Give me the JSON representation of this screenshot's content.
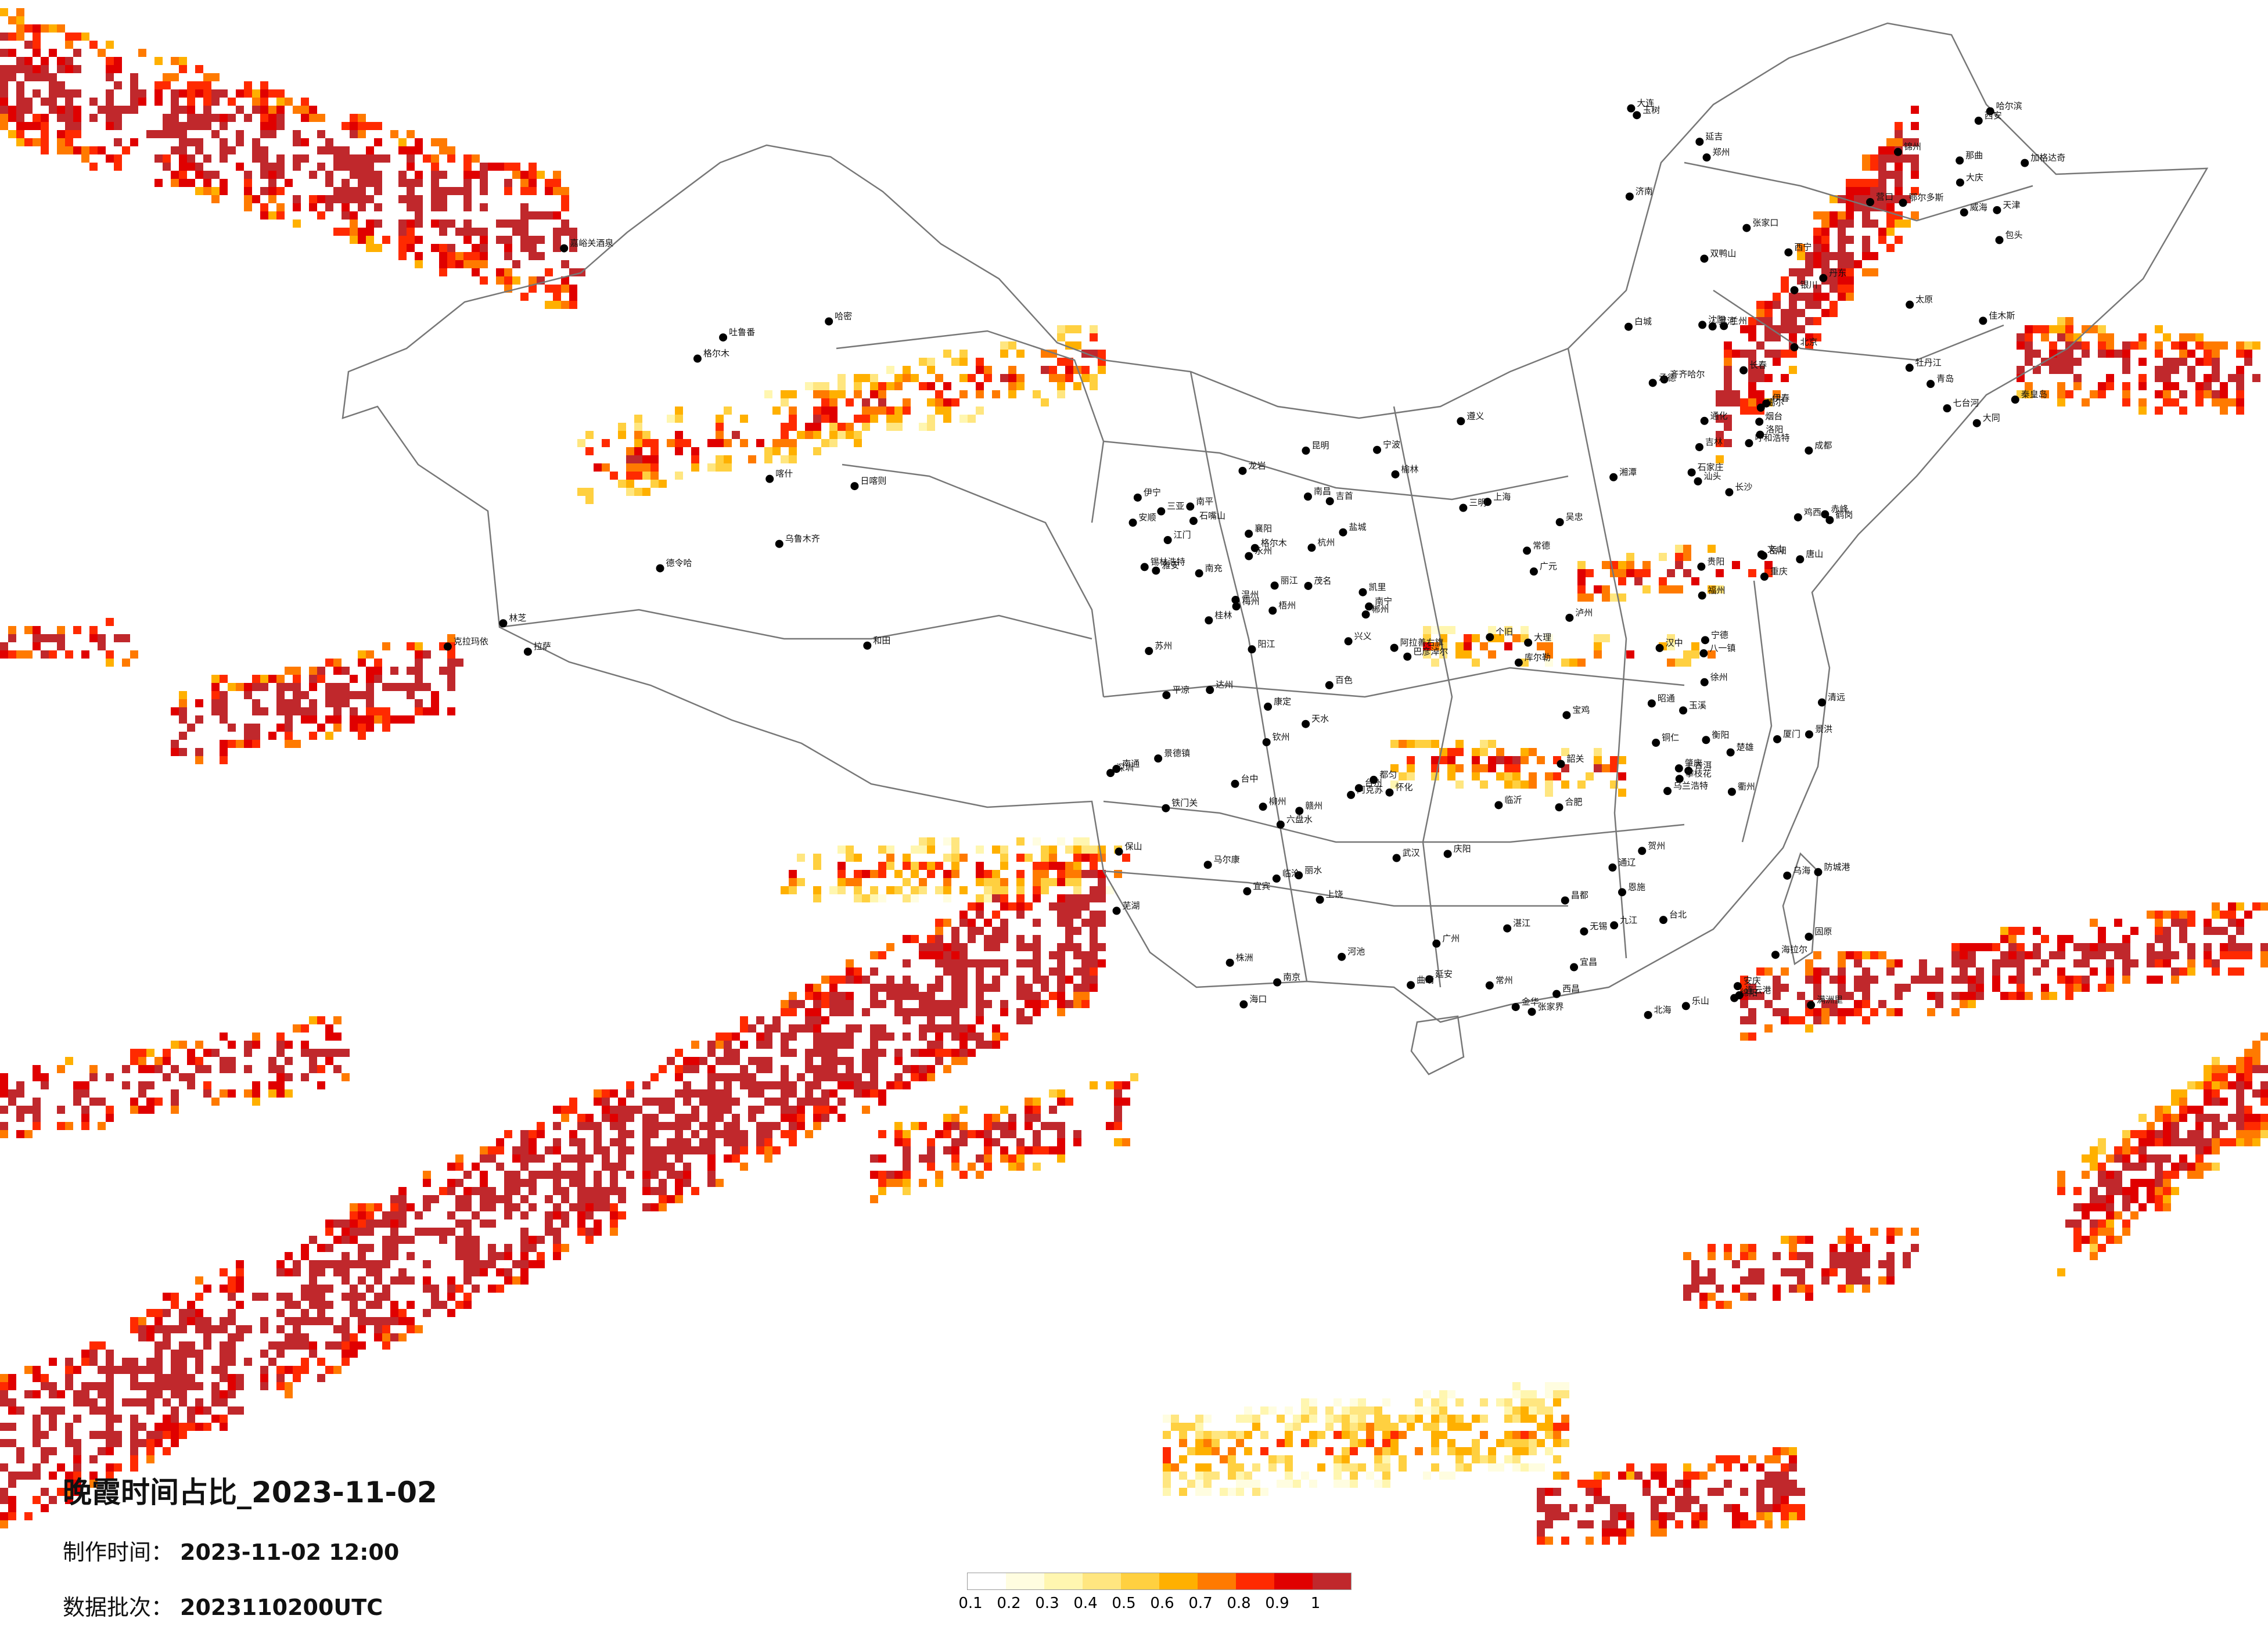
{
  "title": "晚霞时间占比_2023-11-02",
  "made_label": "制作时间：",
  "made_value": "2023-11-02 12:00",
  "batch_label": "数据批次：",
  "batch_value": "2023110200UTC",
  "legend": {
    "colors": [
      "#ffffff",
      "#fffde0",
      "#fff6b0",
      "#ffe680",
      "#ffd040",
      "#ffb000",
      "#ff7a00",
      "#ff2a00",
      "#e00000",
      "#c0282c"
    ],
    "ticks": [
      "0.1",
      "0.2",
      "0.3",
      "0.4",
      "0.5",
      "0.6",
      "0.7",
      "0.8",
      "0.9",
      "1"
    ]
  },
  "cities": [
    "克拉玛依",
    "乌鲁木齐",
    "吐鲁番",
    "喀什",
    "和田",
    "哈密",
    "嘉峪关酒泉",
    "德令哈",
    "格尔木",
    "拉萨",
    "日喀则",
    "林芝",
    "那曲",
    "噶尔",
    "玉树",
    "西宁",
    "兰州",
    "银川",
    "呼和浩特",
    "包头",
    "鄂尔多斯",
    "大同",
    "太原",
    "石家庄",
    "北京",
    "天津",
    "沈阳",
    "长春",
    "哈尔滨",
    "齐齐哈尔",
    "大庆",
    "加格达奇",
    "黑河",
    "伊春",
    "鹤岗",
    "佳木斯",
    "双鸭山",
    "七台河",
    "鸡西",
    "牡丹江",
    "吉林",
    "延吉",
    "通化",
    "白城",
    "丹东",
    "大连",
    "营口",
    "锦州",
    "赤峰",
    "张家口",
    "承德",
    "秦皇岛",
    "唐山",
    "济南",
    "青岛",
    "烟台",
    "威海",
    "郑州",
    "洛阳",
    "西安",
    "宝鸡",
    "汉中",
    "延安",
    "榆林",
    "成都",
    "重庆",
    "贵阳",
    "昆明",
    "大理",
    "丽江",
    "保山",
    "普洱",
    "景洪",
    "个旧",
    "文山",
    "南宁",
    "桂林",
    "柳州",
    "北海",
    "海口",
    "三亚",
    "广州",
    "深圳",
    "汕头",
    "福州",
    "厦门",
    "台北",
    "台中",
    "南昌",
    "赣州",
    "长沙",
    "武汉",
    "宜昌",
    "襄阳",
    "合肥",
    "南京",
    "上海",
    "杭州",
    "宁波",
    "温州",
    "恩施",
    "怀化",
    "遵义",
    "六盘水",
    "西昌",
    "攀枝花",
    "格尔木",
    "阿拉善右旗",
    "巴彦淖尔",
    "乌海",
    "锡林浩特",
    "通辽",
    "乌兰浩特",
    "海拉尔",
    "满洲里",
    "伊宁",
    "阿克苏",
    "库尔勒",
    "铁门关",
    "昌都",
    "八一镇",
    "康定",
    "马尔康",
    "雅安",
    "乐山",
    "宜宾",
    "泸州",
    "达州",
    "南充",
    "绵阳",
    "广元",
    "天水",
    "平凉",
    "庆阳",
    "固原",
    "吴忠",
    "石嘴山",
    "临沂",
    "徐州",
    "连云港",
    "盐城",
    "南通",
    "苏州",
    "无锡",
    "常州",
    "芜湖",
    "安庆",
    "九江",
    "景德镇",
    "上饶",
    "衢州",
    "金华",
    "丽水",
    "台州",
    "宁德",
    "南平",
    "三明",
    "龙岩",
    "梅州",
    "韶关",
    "清远",
    "肇庆",
    "江门",
    "湛江",
    "茂名",
    "阳江",
    "钦州",
    "防城港",
    "百色",
    "河池",
    "梧州",
    "贺州",
    "永州",
    "郴州",
    "衡阳",
    "株洲",
    "湘潭",
    "岳阳",
    "常德",
    "张家界",
    "吉首",
    "铜仁",
    "凯里",
    "都匀",
    "安顺",
    "兴义",
    "曲靖",
    "昭通",
    "楚雄",
    "玉溪",
    "临沧"
  ]
}
